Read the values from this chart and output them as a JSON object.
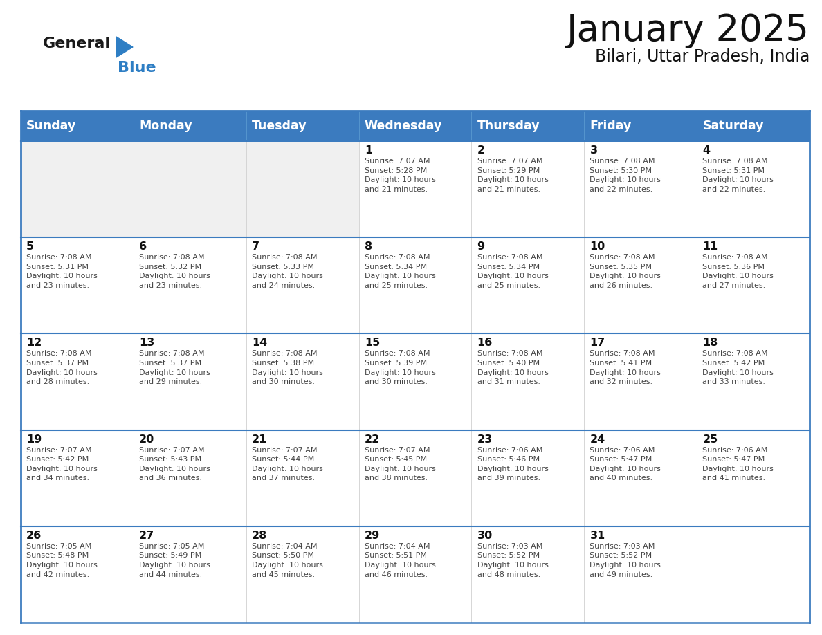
{
  "title": "January 2025",
  "subtitle": "Bilari, Uttar Pradesh, India",
  "days_of_week": [
    "Sunday",
    "Monday",
    "Tuesday",
    "Wednesday",
    "Thursday",
    "Friday",
    "Saturday"
  ],
  "header_bg": "#3b7bbf",
  "header_text": "#ffffff",
  "cell_bg_light": "#f0f0f0",
  "cell_bg_white": "#ffffff",
  "border_color": "#3b7bbf",
  "divider_color": "#3b7bbf",
  "text_color": "#444444",
  "day_number_color": "#111111",
  "logo_general_color": "#1a1a1a",
  "logo_blue_color": "#2e7ec4",
  "calendar_data": [
    [
      {
        "day": null,
        "text": ""
      },
      {
        "day": null,
        "text": ""
      },
      {
        "day": null,
        "text": ""
      },
      {
        "day": 1,
        "text": "Sunrise: 7:07 AM\nSunset: 5:28 PM\nDaylight: 10 hours\nand 21 minutes."
      },
      {
        "day": 2,
        "text": "Sunrise: 7:07 AM\nSunset: 5:29 PM\nDaylight: 10 hours\nand 21 minutes."
      },
      {
        "day": 3,
        "text": "Sunrise: 7:08 AM\nSunset: 5:30 PM\nDaylight: 10 hours\nand 22 minutes."
      },
      {
        "day": 4,
        "text": "Sunrise: 7:08 AM\nSunset: 5:31 PM\nDaylight: 10 hours\nand 22 minutes."
      }
    ],
    [
      {
        "day": 5,
        "text": "Sunrise: 7:08 AM\nSunset: 5:31 PM\nDaylight: 10 hours\nand 23 minutes."
      },
      {
        "day": 6,
        "text": "Sunrise: 7:08 AM\nSunset: 5:32 PM\nDaylight: 10 hours\nand 23 minutes."
      },
      {
        "day": 7,
        "text": "Sunrise: 7:08 AM\nSunset: 5:33 PM\nDaylight: 10 hours\nand 24 minutes."
      },
      {
        "day": 8,
        "text": "Sunrise: 7:08 AM\nSunset: 5:34 PM\nDaylight: 10 hours\nand 25 minutes."
      },
      {
        "day": 9,
        "text": "Sunrise: 7:08 AM\nSunset: 5:34 PM\nDaylight: 10 hours\nand 25 minutes."
      },
      {
        "day": 10,
        "text": "Sunrise: 7:08 AM\nSunset: 5:35 PM\nDaylight: 10 hours\nand 26 minutes."
      },
      {
        "day": 11,
        "text": "Sunrise: 7:08 AM\nSunset: 5:36 PM\nDaylight: 10 hours\nand 27 minutes."
      }
    ],
    [
      {
        "day": 12,
        "text": "Sunrise: 7:08 AM\nSunset: 5:37 PM\nDaylight: 10 hours\nand 28 minutes."
      },
      {
        "day": 13,
        "text": "Sunrise: 7:08 AM\nSunset: 5:37 PM\nDaylight: 10 hours\nand 29 minutes."
      },
      {
        "day": 14,
        "text": "Sunrise: 7:08 AM\nSunset: 5:38 PM\nDaylight: 10 hours\nand 30 minutes."
      },
      {
        "day": 15,
        "text": "Sunrise: 7:08 AM\nSunset: 5:39 PM\nDaylight: 10 hours\nand 30 minutes."
      },
      {
        "day": 16,
        "text": "Sunrise: 7:08 AM\nSunset: 5:40 PM\nDaylight: 10 hours\nand 31 minutes."
      },
      {
        "day": 17,
        "text": "Sunrise: 7:08 AM\nSunset: 5:41 PM\nDaylight: 10 hours\nand 32 minutes."
      },
      {
        "day": 18,
        "text": "Sunrise: 7:08 AM\nSunset: 5:42 PM\nDaylight: 10 hours\nand 33 minutes."
      }
    ],
    [
      {
        "day": 19,
        "text": "Sunrise: 7:07 AM\nSunset: 5:42 PM\nDaylight: 10 hours\nand 34 minutes."
      },
      {
        "day": 20,
        "text": "Sunrise: 7:07 AM\nSunset: 5:43 PM\nDaylight: 10 hours\nand 36 minutes."
      },
      {
        "day": 21,
        "text": "Sunrise: 7:07 AM\nSunset: 5:44 PM\nDaylight: 10 hours\nand 37 minutes."
      },
      {
        "day": 22,
        "text": "Sunrise: 7:07 AM\nSunset: 5:45 PM\nDaylight: 10 hours\nand 38 minutes."
      },
      {
        "day": 23,
        "text": "Sunrise: 7:06 AM\nSunset: 5:46 PM\nDaylight: 10 hours\nand 39 minutes."
      },
      {
        "day": 24,
        "text": "Sunrise: 7:06 AM\nSunset: 5:47 PM\nDaylight: 10 hours\nand 40 minutes."
      },
      {
        "day": 25,
        "text": "Sunrise: 7:06 AM\nSunset: 5:47 PM\nDaylight: 10 hours\nand 41 minutes."
      }
    ],
    [
      {
        "day": 26,
        "text": "Sunrise: 7:05 AM\nSunset: 5:48 PM\nDaylight: 10 hours\nand 42 minutes."
      },
      {
        "day": 27,
        "text": "Sunrise: 7:05 AM\nSunset: 5:49 PM\nDaylight: 10 hours\nand 44 minutes."
      },
      {
        "day": 28,
        "text": "Sunrise: 7:04 AM\nSunset: 5:50 PM\nDaylight: 10 hours\nand 45 minutes."
      },
      {
        "day": 29,
        "text": "Sunrise: 7:04 AM\nSunset: 5:51 PM\nDaylight: 10 hours\nand 46 minutes."
      },
      {
        "day": 30,
        "text": "Sunrise: 7:03 AM\nSunset: 5:52 PM\nDaylight: 10 hours\nand 48 minutes."
      },
      {
        "day": 31,
        "text": "Sunrise: 7:03 AM\nSunset: 5:52 PM\nDaylight: 10 hours\nand 49 minutes."
      },
      {
        "day": null,
        "text": ""
      }
    ]
  ]
}
